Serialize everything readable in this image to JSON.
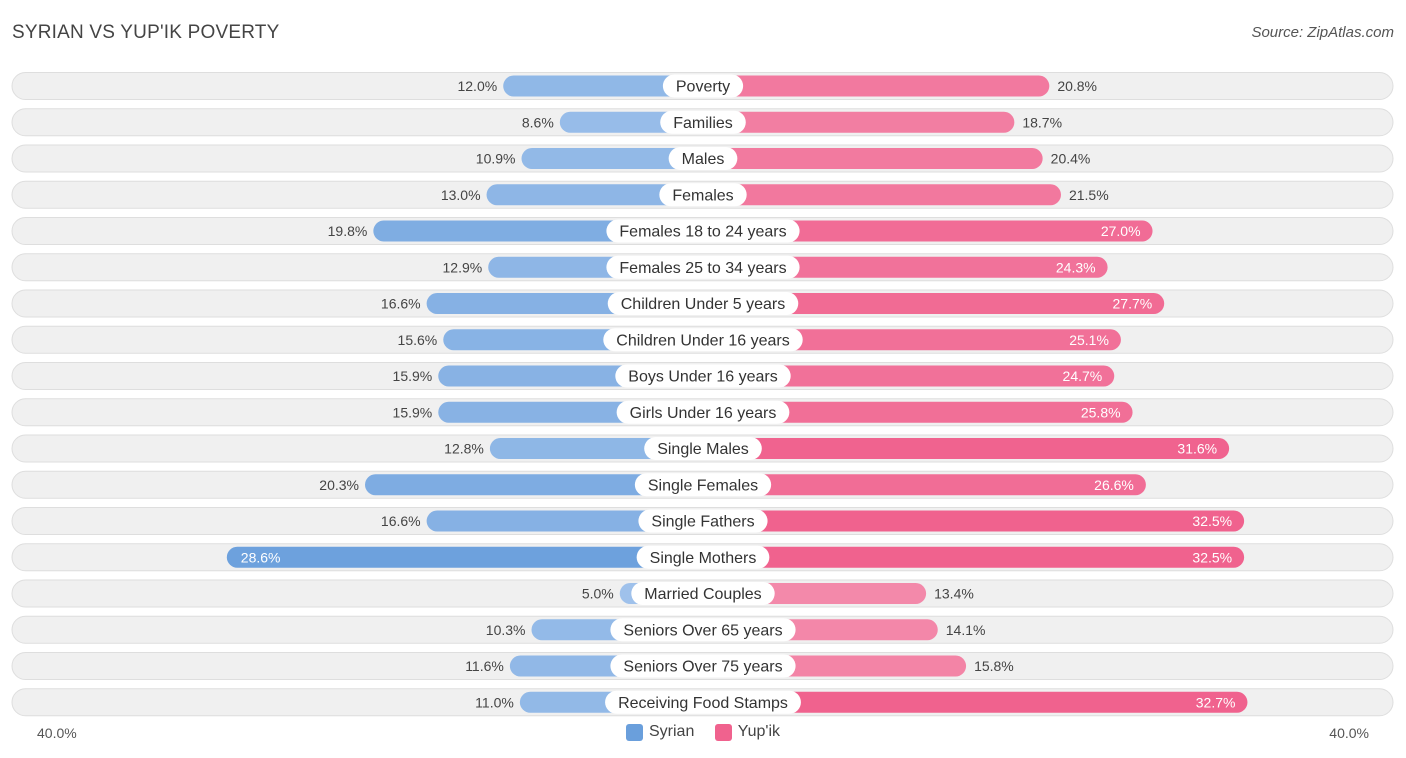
{
  "title": "SYRIAN VS YUP'IK POVERTY",
  "source": "Source: ZipAtlas.com",
  "colors": {
    "syrian": "#6a9fdc",
    "syrian_light": "#a9c8ee",
    "yupik": "#f0628e",
    "yupik_light": "#f6a5be",
    "row_bg": "#f0f0f0",
    "row_border": "#dedede"
  },
  "legend": {
    "syrian": "Syrian",
    "yupik": "Yup'ik"
  },
  "axis": {
    "left_label": "40.0%",
    "right_label": "40.0%"
  },
  "chart_data": {
    "type": "bar",
    "orientation": "horizontal-diverging",
    "title": "SYRIAN VS YUP'IK POVERTY",
    "xlim": [
      -40,
      40
    ],
    "categories": [
      "Poverty",
      "Families",
      "Males",
      "Females",
      "Females 18 to 24 years",
      "Females 25 to 34 years",
      "Children Under 5 years",
      "Children Under 16 years",
      "Boys Under 16 years",
      "Girls Under 16 years",
      "Single Males",
      "Single Females",
      "Single Fathers",
      "Single Mothers",
      "Married Couples",
      "Seniors Over 65 years",
      "Seniors Over 75 years",
      "Receiving Food Stamps"
    ],
    "series": [
      {
        "name": "Syrian",
        "values": [
          12.0,
          8.6,
          10.9,
          13.0,
          19.8,
          12.9,
          16.6,
          15.6,
          15.9,
          15.9,
          12.8,
          20.3,
          16.6,
          28.6,
          5.0,
          10.3,
          11.6,
          11.0
        ],
        "labels": [
          "12.0%",
          "8.6%",
          "10.9%",
          "13.0%",
          "19.8%",
          "12.9%",
          "16.6%",
          "15.6%",
          "15.9%",
          "15.9%",
          "12.8%",
          "20.3%",
          "16.6%",
          "28.6%",
          "5.0%",
          "10.3%",
          "11.6%",
          "11.0%"
        ]
      },
      {
        "name": "Yup'ik",
        "values": [
          20.8,
          18.7,
          20.4,
          21.5,
          27.0,
          24.3,
          27.7,
          25.1,
          24.7,
          25.8,
          31.6,
          26.6,
          32.5,
          32.5,
          13.4,
          14.1,
          15.8,
          32.7
        ],
        "labels": [
          "20.8%",
          "18.7%",
          "20.4%",
          "21.5%",
          "27.0%",
          "24.3%",
          "27.7%",
          "25.1%",
          "24.7%",
          "25.8%",
          "31.6%",
          "26.6%",
          "32.5%",
          "32.5%",
          "13.4%",
          "14.1%",
          "15.8%",
          "32.7%"
        ]
      }
    ],
    "legend_position": "bottom-center"
  }
}
